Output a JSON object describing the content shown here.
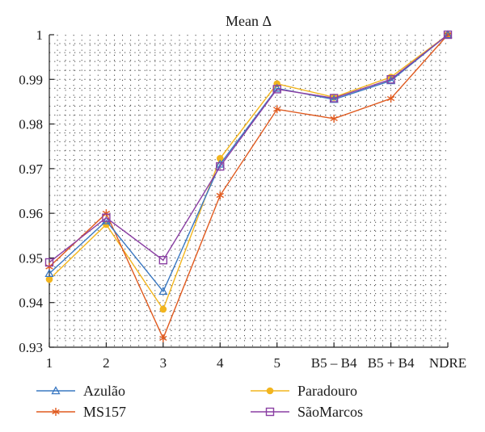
{
  "chart_data": {
    "type": "line",
    "title": "Mean Δ",
    "xlabel": "",
    "ylabel": "",
    "categories": [
      "1",
      "2",
      "3",
      "4",
      "5",
      "B5 – B4",
      "B5 + B4",
      "NDRE"
    ],
    "ylim": [
      0.93,
      1.0
    ],
    "yticks": [
      "0.93",
      "0.94",
      "0.95",
      "0.96",
      "0.97",
      "0.98",
      "0.99",
      "1"
    ],
    "grid": true,
    "legend_position": "bottom",
    "series": [
      {
        "name": "Azulão",
        "color": "#3a78c2",
        "marker": "triangle",
        "values": [
          0.9465,
          0.9583,
          0.9425,
          0.971,
          0.988,
          0.9855,
          0.9897,
          1.0
        ]
      },
      {
        "name": "MS157",
        "color": "#e05a1f",
        "marker": "asterisk",
        "values": [
          0.948,
          0.96,
          0.932,
          0.964,
          0.9833,
          0.9812,
          0.9857,
          1.0
        ]
      },
      {
        "name": "Paradouro",
        "color": "#f2b51e",
        "marker": "circle",
        "values": [
          0.9452,
          0.9575,
          0.9385,
          0.9723,
          0.989,
          0.986,
          0.9905,
          1.0
        ]
      },
      {
        "name": "SãoMarcos",
        "color": "#8a3fa3",
        "marker": "square",
        "values": [
          0.949,
          0.959,
          0.9495,
          0.9705,
          0.9878,
          0.9858,
          0.99,
          1.0
        ]
      }
    ]
  }
}
